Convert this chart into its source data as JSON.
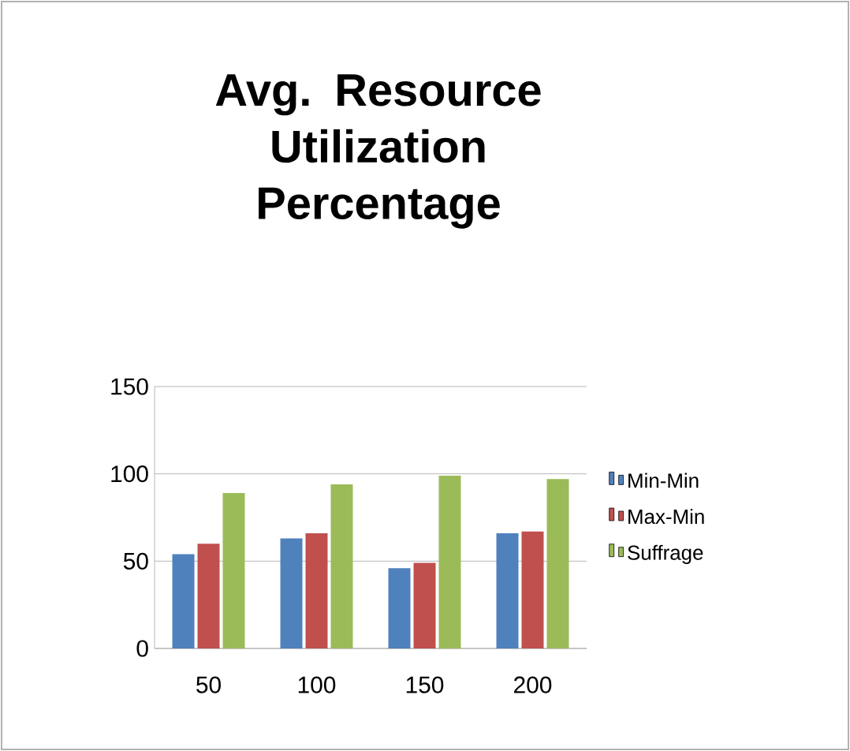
{
  "chart_data": {
    "type": "bar",
    "title": "Avg. Resource Utilization Percentage",
    "categories": [
      "50",
      "100",
      "150",
      "200"
    ],
    "series": [
      {
        "name": "Min-Min",
        "color": "#4f81bd",
        "values": [
          54,
          63,
          46,
          66
        ]
      },
      {
        "name": "Max-Min",
        "color": "#c0504d",
        "values": [
          60,
          66,
          49,
          67
        ]
      },
      {
        "name": "Suffrage",
        "color": "#9bbb59",
        "values": [
          89,
          94,
          99,
          97
        ]
      }
    ],
    "ylim": [
      0,
      150
    ],
    "yticks": [
      0,
      50,
      100,
      150
    ],
    "grid": "y",
    "legend": "right"
  }
}
